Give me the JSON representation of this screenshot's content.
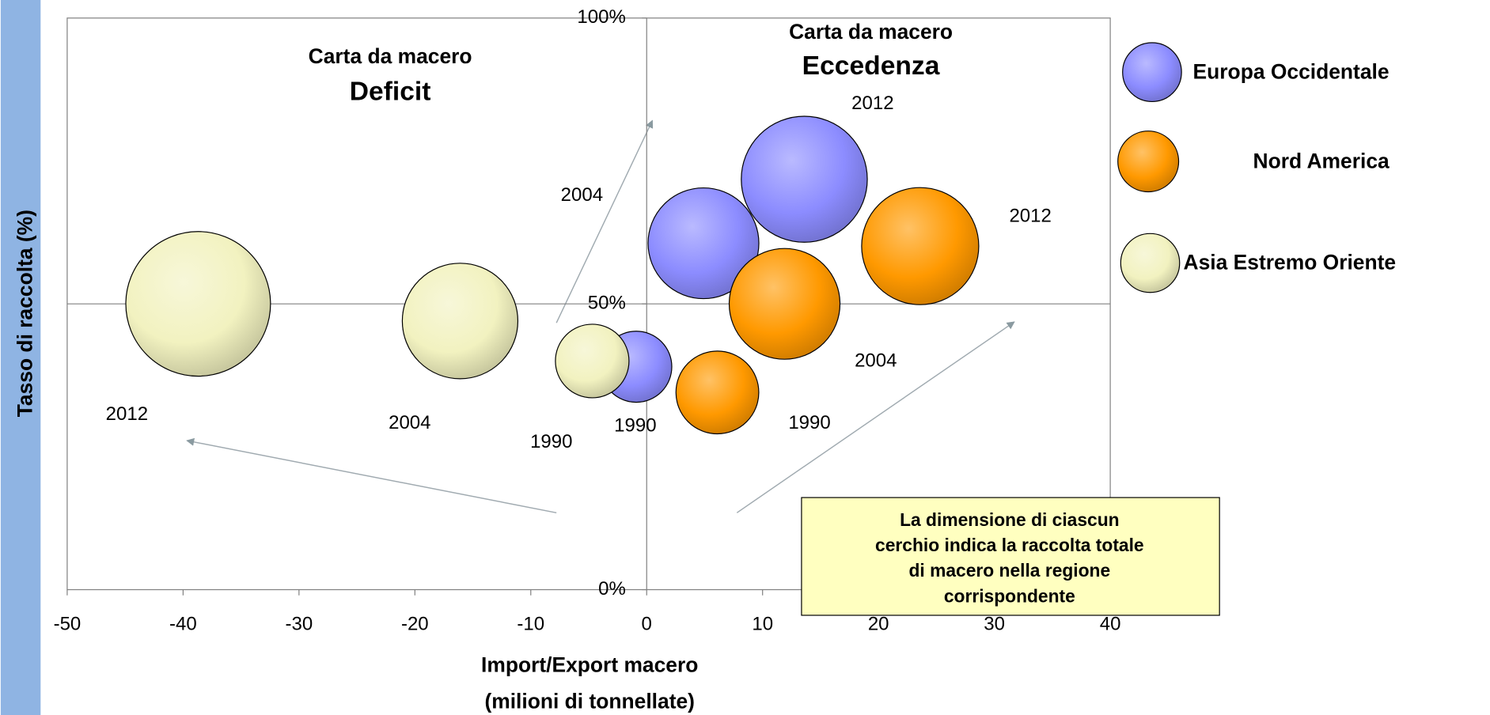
{
  "chart_data": {
    "type": "bubble",
    "xlabel": [
      "Import/Export macero",
      "(milioni di tonnellate)"
    ],
    "ylabel": "Tasso di raccolta (%)",
    "xlim": [
      -50,
      40
    ],
    "ylim": [
      0,
      100
    ],
    "xticks": [
      -50,
      -40,
      -30,
      -20,
      -10,
      0,
      10,
      20,
      30,
      40
    ],
    "yticks": [
      {
        "value": 0,
        "label": "0%"
      },
      {
        "value": 50,
        "label": "50%"
      },
      {
        "value": 100,
        "label": "100%"
      }
    ],
    "crosshair": {
      "x": 0,
      "y": 50
    },
    "annotations": {
      "deficit": [
        "Carta da macero",
        "Deficit"
      ],
      "surplus": [
        "Carta da macero",
        "Eccedenza"
      ],
      "note": [
        "La dimensione di ciascun",
        "cerchio indica la raccolta totale",
        "di macero nella regione",
        "corrispondente"
      ]
    },
    "series": [
      {
        "name": "Europa Occidentale",
        "color": "#8c8cff",
        "labels": [
          "1990",
          "2004",
          "2012"
        ],
        "x": [
          -0.9,
          4.9,
          13.6
        ],
        "values": [
          39,
          60.6,
          71.8
        ],
        "size": [
          14,
          34,
          44
        ]
      },
      {
        "name": "Nord America",
        "color": "#ff9900",
        "labels": [
          "1990",
          "2004",
          "2012"
        ],
        "x": [
          6.1,
          11.9,
          23.6
        ],
        "values": [
          34.5,
          50,
          60.1
        ],
        "size": [
          19,
          34,
          38
        ]
      },
      {
        "name": "Asia Estremo Oriente",
        "color": "#f2f2c0",
        "labels": [
          "1990",
          "2004",
          "2012"
        ],
        "x": [
          -4.7,
          -16.1,
          -38.7
        ],
        "values": [
          40,
          47,
          50
        ],
        "size": [
          15,
          37,
          58
        ]
      }
    ]
  }
}
